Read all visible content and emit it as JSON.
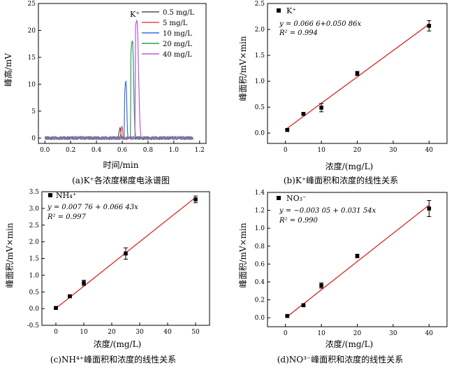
{
  "chart_data": [
    {
      "type": "line",
      "panel_caption": "(a)K⁺各浓度梯度电泳谱图",
      "annotation": "K⁺",
      "xlabel": "时间/min",
      "ylabel": "峰高/mV",
      "xlim": [
        -0.05,
        1.25
      ],
      "ylim": [
        -1,
        25
      ],
      "xticks": [
        "0.0",
        "0.2",
        "0.4",
        "0.6",
        "0.8",
        "1.0",
        "1.2"
      ],
      "yticks": [
        "0",
        "5",
        "10",
        "15",
        "20",
        "25"
      ],
      "legend_position": "top-right",
      "series": [
        {
          "name": "0.5 mg/L",
          "color": "#555555",
          "peak_x": 0.585,
          "peak_y": 2.1,
          "width": 0.012
        },
        {
          "name": "5 mg/L",
          "color": "#e84a4a",
          "peak_x": 0.6,
          "peak_y": 2.2,
          "width": 0.012
        },
        {
          "name": "10 mg/L",
          "color": "#3a6fd8",
          "peak_x": 0.63,
          "peak_y": 10.5,
          "width": 0.022
        },
        {
          "name": "20 mg/L",
          "color": "#2e9e5e",
          "peak_x": 0.68,
          "peak_y": 18,
          "width": 0.035
        },
        {
          "name": "40 mg/L",
          "color": "#b65bd6",
          "peak_x": 0.715,
          "peak_y": 21.8,
          "width": 0.045
        }
      ]
    },
    {
      "type": "scatter",
      "panel_caption": "(b)K⁺峰面积和浓度的线性关系",
      "legend": "K⁺",
      "equation": "y = 0.066 6+0.050 86x",
      "r2": "R² = 0.994",
      "xlabel": "浓度/(mg/L)",
      "ylabel": "峰面积/mV×min",
      "xlim": [
        -5,
        45
      ],
      "ylim": [
        -0.2,
        2.5
      ],
      "xticks": [
        "0",
        "10",
        "20",
        "30",
        "40"
      ],
      "yticks": [
        "0.0",
        "0.5",
        "1.0",
        "1.5",
        "2.0",
        "2.5"
      ],
      "points": [
        {
          "x": 0.5,
          "y": 0.06,
          "err": 0.02
        },
        {
          "x": 5,
          "y": 0.37,
          "err": 0.02
        },
        {
          "x": 10,
          "y": 0.49,
          "err": 0.08
        },
        {
          "x": 20,
          "y": 1.15,
          "err": 0.04
        },
        {
          "x": 40,
          "y": 2.07,
          "err": 0.1
        }
      ],
      "fit": {
        "intercept": 0.0666,
        "slope": 0.05086,
        "x_range": [
          0.5,
          40
        ]
      }
    },
    {
      "type": "scatter",
      "panel_caption": "(c)NH⁴⁺峰面积和浓度的线性关系",
      "legend": "NH₄⁺",
      "equation": "y = 0.007 76 + 0.066 43x",
      "r2": "R² = 0.997",
      "xlabel": "浓度/(mg/L)",
      "ylabel": "峰面积/mV×min",
      "xlim": [
        -5,
        55
      ],
      "ylim": [
        -0.5,
        3.5
      ],
      "xticks": [
        "0",
        "10",
        "20",
        "30",
        "40",
        "50"
      ],
      "yticks": [
        "-0.5",
        "0.0",
        "0.5",
        "1.0",
        "1.5",
        "2.0",
        "2.5",
        "3.0",
        "3.5"
      ],
      "points": [
        {
          "x": 0,
          "y": 0.02,
          "err": 0.02
        },
        {
          "x": 5,
          "y": 0.37,
          "err": 0.03
        },
        {
          "x": 10,
          "y": 0.77,
          "err": 0.08
        },
        {
          "x": 25,
          "y": 1.65,
          "err": 0.17
        },
        {
          "x": 50,
          "y": 3.27,
          "err": 0.1
        }
      ],
      "fit": {
        "intercept": 0.00776,
        "slope": 0.06643,
        "x_range": [
          0,
          50
        ]
      }
    },
    {
      "type": "scatter",
      "panel_caption": "(d)NO³⁻峰面积和浓度的线性关系",
      "legend": "NO₃⁻",
      "equation": "y = −0.003 05 + 0.031 54x",
      "r2": "R² = 0.990",
      "xlabel": "浓度/(mg/L)",
      "ylabel": "峰面积/mV×min",
      "xlim": [
        -5,
        45
      ],
      "ylim": [
        -0.1,
        1.4
      ],
      "xticks": [
        "0",
        "10",
        "20",
        "30",
        "40"
      ],
      "yticks": [
        "0.0",
        "0.2",
        "0.4",
        "0.6",
        "0.8",
        "1.0",
        "1.2",
        "1.4"
      ],
      "points": [
        {
          "x": 0.5,
          "y": 0.02,
          "err": 0.01
        },
        {
          "x": 5,
          "y": 0.14,
          "err": 0.01
        },
        {
          "x": 10,
          "y": 0.36,
          "err": 0.03
        },
        {
          "x": 20,
          "y": 0.69,
          "err": 0.02
        },
        {
          "x": 40,
          "y": 1.22,
          "err": 0.09
        }
      ],
      "fit": {
        "intercept": -0.00305,
        "slope": 0.03154,
        "x_range": [
          0.5,
          40
        ]
      }
    }
  ]
}
